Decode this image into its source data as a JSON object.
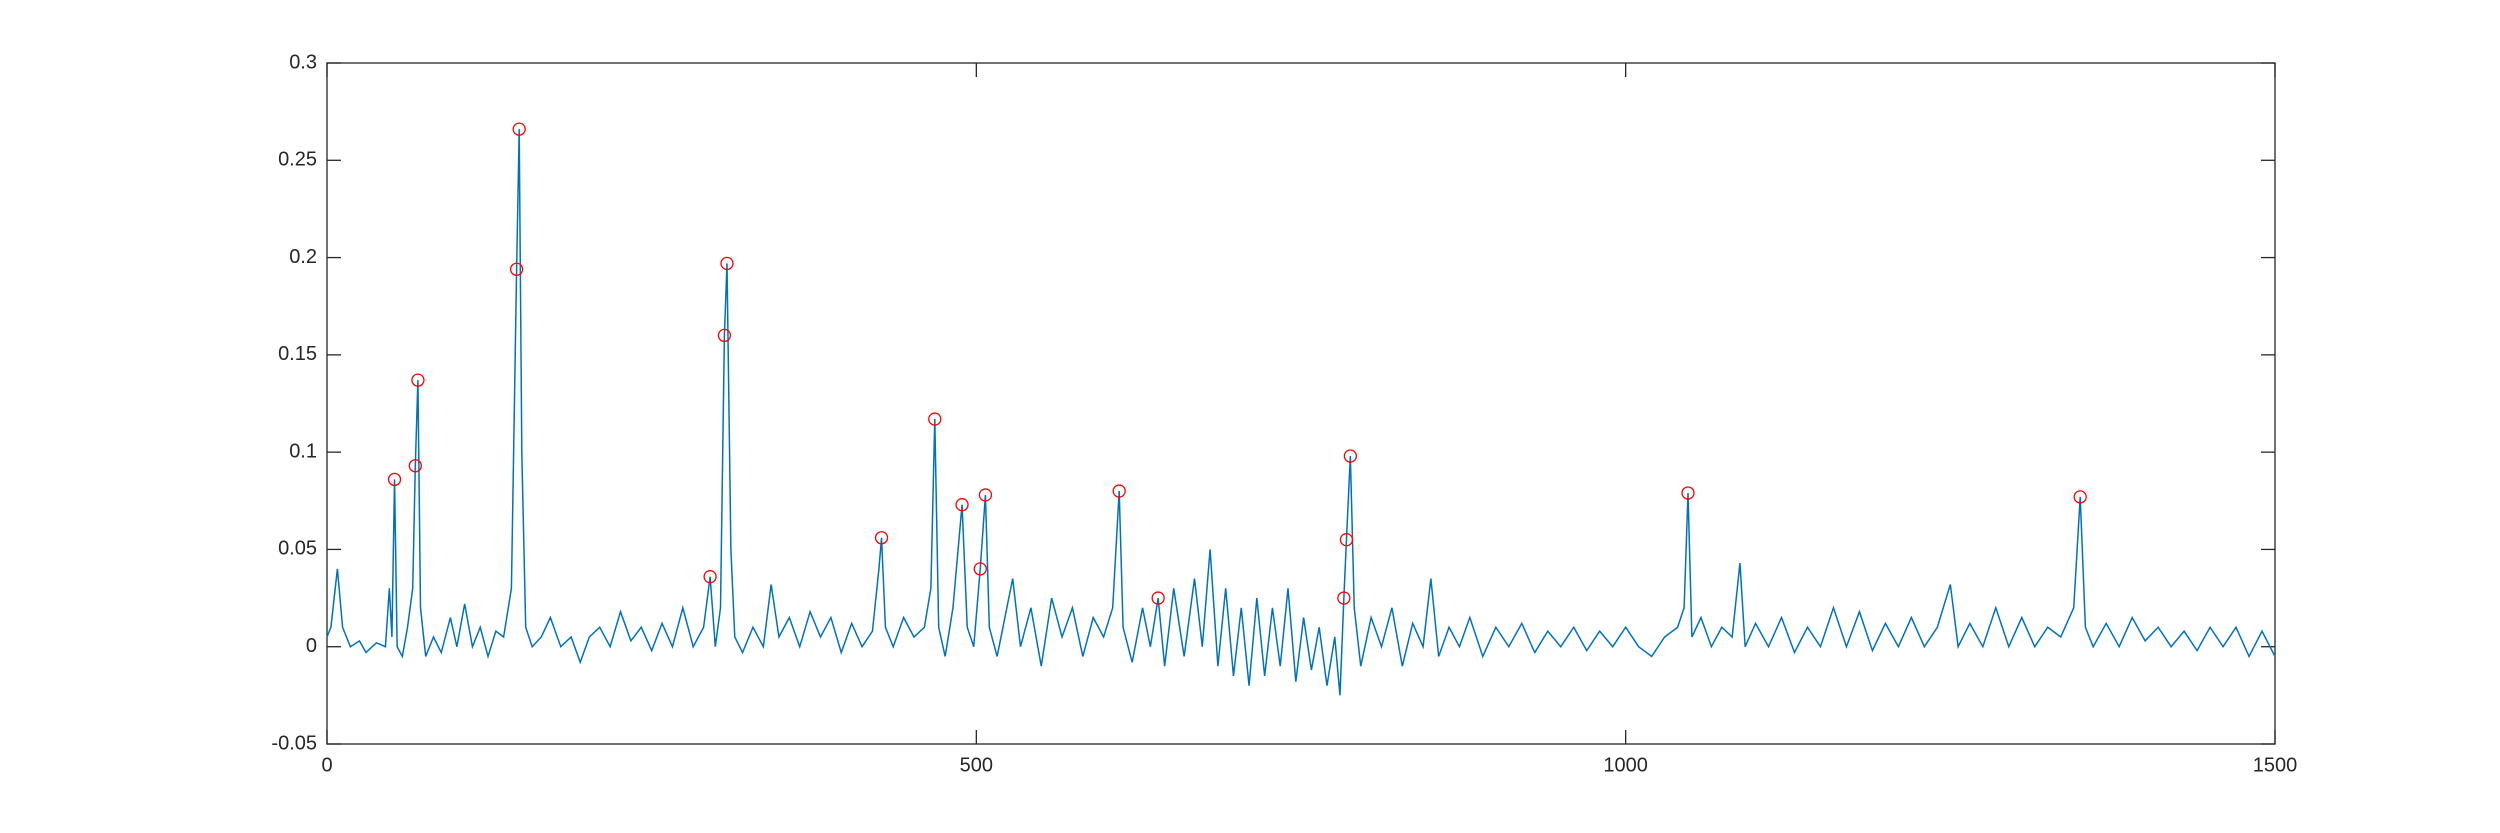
{
  "chart_data": {
    "type": "line",
    "xlim": [
      0,
      1500
    ],
    "xticks": [
      0,
      500,
      1000,
      1500
    ],
    "ylim": [
      -0.05,
      0.3
    ],
    "yticks": [
      -0.05,
      0,
      0.05,
      0.1,
      0.15,
      0.2,
      0.25,
      0.3
    ],
    "box": true,
    "series": [
      {
        "style": "line",
        "color": "#0072bd",
        "x": [
          0,
          3,
          8,
          12,
          18,
          25,
          30,
          38,
          45,
          48,
          50,
          52,
          54,
          58,
          62,
          66,
          68,
          70,
          72,
          76,
          82,
          88,
          95,
          100,
          106,
          112,
          118,
          124,
          130,
          136,
          142,
          146,
          148,
          150,
          153,
          158,
          165,
          172,
          180,
          188,
          195,
          202,
          210,
          218,
          226,
          234,
          242,
          250,
          258,
          266,
          274,
          282,
          290,
          295,
          299,
          303,
          306,
          308,
          311,
          314,
          320,
          328,
          336,
          342,
          348,
          356,
          364,
          372,
          380,
          388,
          396,
          404,
          412,
          420,
          425,
          427,
          430,
          436,
          444,
          452,
          460,
          465,
          468,
          471,
          476,
          482,
          489,
          493,
          498,
          503,
          507,
          510,
          516,
          522,
          528,
          534,
          542,
          550,
          558,
          566,
          574,
          582,
          590,
          598,
          605,
          610,
          613,
          620,
          628,
          634,
          640,
          645,
          652,
          660,
          668,
          674,
          680,
          686,
          692,
          698,
          704,
          710,
          716,
          722,
          728,
          734,
          740,
          746,
          752,
          758,
          764,
          770,
          776,
          780,
          783,
          785,
          788,
          791,
          796,
          804,
          812,
          820,
          828,
          836,
          844,
          850,
          856,
          864,
          872,
          880,
          890,
          900,
          910,
          920,
          930,
          940,
          950,
          960,
          970,
          980,
          990,
          1000,
          1010,
          1020,
          1030,
          1040,
          1045,
          1048,
          1051,
          1058,
          1066,
          1074,
          1082,
          1088,
          1092,
          1100,
          1110,
          1120,
          1130,
          1140,
          1150,
          1160,
          1170,
          1180,
          1190,
          1200,
          1210,
          1220,
          1230,
          1240,
          1250,
          1256,
          1265,
          1275,
          1285,
          1295,
          1305,
          1315,
          1325,
          1335,
          1345,
          1350,
          1354,
          1360,
          1370,
          1380,
          1390,
          1400,
          1410,
          1420,
          1430,
          1440,
          1450,
          1460,
          1470,
          1480,
          1490,
          1500
        ],
        "values": [
          0.005,
          0.01,
          0.04,
          0.01,
          0,
          0.003,
          -0.003,
          0.002,
          0,
          0.03,
          0.005,
          0.086,
          0,
          -0.005,
          0.01,
          0.03,
          0.093,
          0.137,
          0.02,
          -0.005,
          0.005,
          -0.003,
          0.015,
          0,
          0.022,
          0,
          0.01,
          -0.005,
          0.008,
          0.005,
          0.03,
          0.194,
          0.266,
          0.1,
          0.01,
          0,
          0.005,
          0.015,
          0,
          0.005,
          -0.008,
          0.005,
          0.01,
          0,
          0.018,
          0.003,
          0.01,
          -0.002,
          0.012,
          0,
          0.02,
          0,
          0.01,
          0.036,
          0,
          0.02,
          0.16,
          0.197,
          0.05,
          0.005,
          -0.003,
          0.01,
          0,
          0.032,
          0.005,
          0.015,
          0,
          0.018,
          0.005,
          0.015,
          -0.003,
          0.012,
          0,
          0.008,
          0.04,
          0.056,
          0.01,
          0,
          0.015,
          0.005,
          0.01,
          0.03,
          0.117,
          0.01,
          -0.005,
          0.02,
          0.073,
          0.01,
          0,
          0.04,
          0.078,
          0.01,
          -0.005,
          0.015,
          0.035,
          0,
          0.02,
          -0.01,
          0.025,
          0.005,
          0.02,
          -0.005,
          0.015,
          0.005,
          0.02,
          0.08,
          0.01,
          -0.008,
          0.02,
          0,
          0.025,
          -0.01,
          0.03,
          -0.005,
          0.035,
          0,
          0.05,
          -0.01,
          0.03,
          -0.015,
          0.02,
          -0.02,
          0.025,
          -0.015,
          0.02,
          -0.01,
          0.03,
          -0.018,
          0.015,
          -0.012,
          0.01,
          -0.02,
          0.005,
          -0.025,
          0.025,
          0.055,
          0.098,
          0.02,
          -0.01,
          0.015,
          0,
          0.02,
          -0.01,
          0.012,
          0,
          0.035,
          -0.005,
          0.01,
          0,
          0.015,
          -0.005,
          0.01,
          0,
          0.012,
          -0.003,
          0.008,
          0,
          0.01,
          -0.002,
          0.008,
          0,
          0.01,
          0,
          -0.005,
          0.005,
          0.01,
          0.02,
          0.079,
          0.005,
          0.015,
          0,
          0.01,
          0.005,
          0.043,
          0,
          0.012,
          0,
          0.015,
          -0.003,
          0.01,
          0,
          0.02,
          0,
          0.018,
          -0.002,
          0.012,
          0,
          0.015,
          0,
          0.01,
          0.032,
          0,
          0.012,
          0,
          0.02,
          0,
          0.015,
          0,
          0.01,
          0.005,
          0.02,
          0.077,
          0.01,
          0,
          0.012,
          0,
          0.015,
          0.003,
          0.01,
          0,
          0.008,
          -0.002,
          0.01,
          0,
          0.01,
          -0.005,
          0.008,
          -0.005
        ]
      },
      {
        "style": "markers",
        "color": "#ff0000",
        "x": [
          52,
          68,
          70,
          146,
          148,
          295,
          306,
          308,
          427,
          468,
          489,
          503,
          507,
          610,
          640,
          783,
          785,
          788,
          1048,
          1350
        ],
        "values": [
          0.086,
          0.093,
          0.137,
          0.194,
          0.266,
          0.036,
          0.16,
          0.197,
          0.056,
          0.117,
          0.073,
          0.04,
          0.078,
          0.08,
          0.025,
          0.025,
          0.055,
          0.098,
          0.079,
          0.077
        ]
      }
    ]
  }
}
